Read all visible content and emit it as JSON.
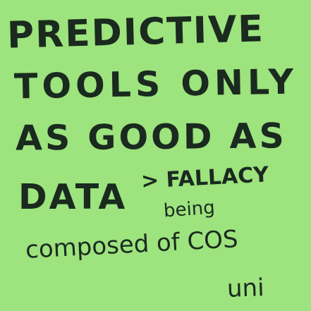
{
  "note": {
    "background_color": "#9de37e",
    "ink_color": "#1a2a1f",
    "lines": [
      "PREDICTIVE",
      "TOOLS ONLY",
      "AS GOOD AS",
      "DATA",
      "> FALLACY",
      "being",
      "composed of COS",
      "uni"
    ]
  }
}
